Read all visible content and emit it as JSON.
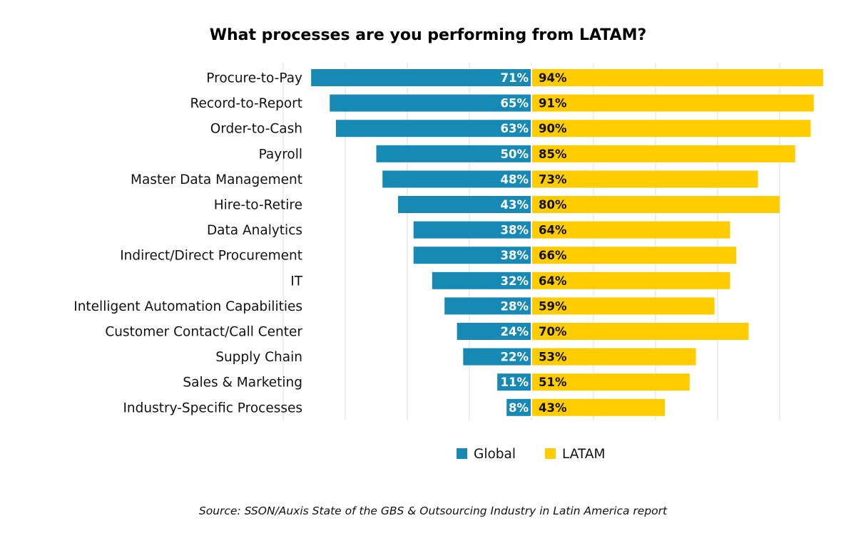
{
  "chart_data": {
    "type": "bar",
    "orientation": "horizontal-diverging",
    "title": "What processes are you performing from LATAM?",
    "categories": [
      "Procure-to-Pay",
      "Record-to-Report",
      "Order-to-Cash",
      "Payroll",
      "Master Data Management",
      "Hire-to-Retire",
      "Data Analytics",
      "Indirect/Direct Procurement",
      "IT",
      "Intelligent Automation Capabilities",
      "Customer Contact/Call Center",
      "Supply Chain",
      "Sales & Marketing",
      "Industry-Specific Processes"
    ],
    "series": [
      {
        "name": "Global",
        "color": "#1789b5",
        "label_color": "#ffffff",
        "values": [
          71,
          65,
          63,
          50,
          48,
          43,
          38,
          38,
          32,
          28,
          24,
          22,
          11,
          8
        ]
      },
      {
        "name": "LATAM",
        "color": "#ffcc00",
        "label_color": "#111111",
        "values": [
          94,
          91,
          90,
          85,
          73,
          80,
          64,
          66,
          64,
          59,
          70,
          53,
          51,
          43
        ]
      }
    ],
    "value_suffix": "%",
    "xlim": [
      -100,
      100
    ],
    "grid": true,
    "legend_position": "bottom-center",
    "source": "Source: SSON/Auxis State of the GBS & Outsourcing Industry in Latin America report"
  }
}
